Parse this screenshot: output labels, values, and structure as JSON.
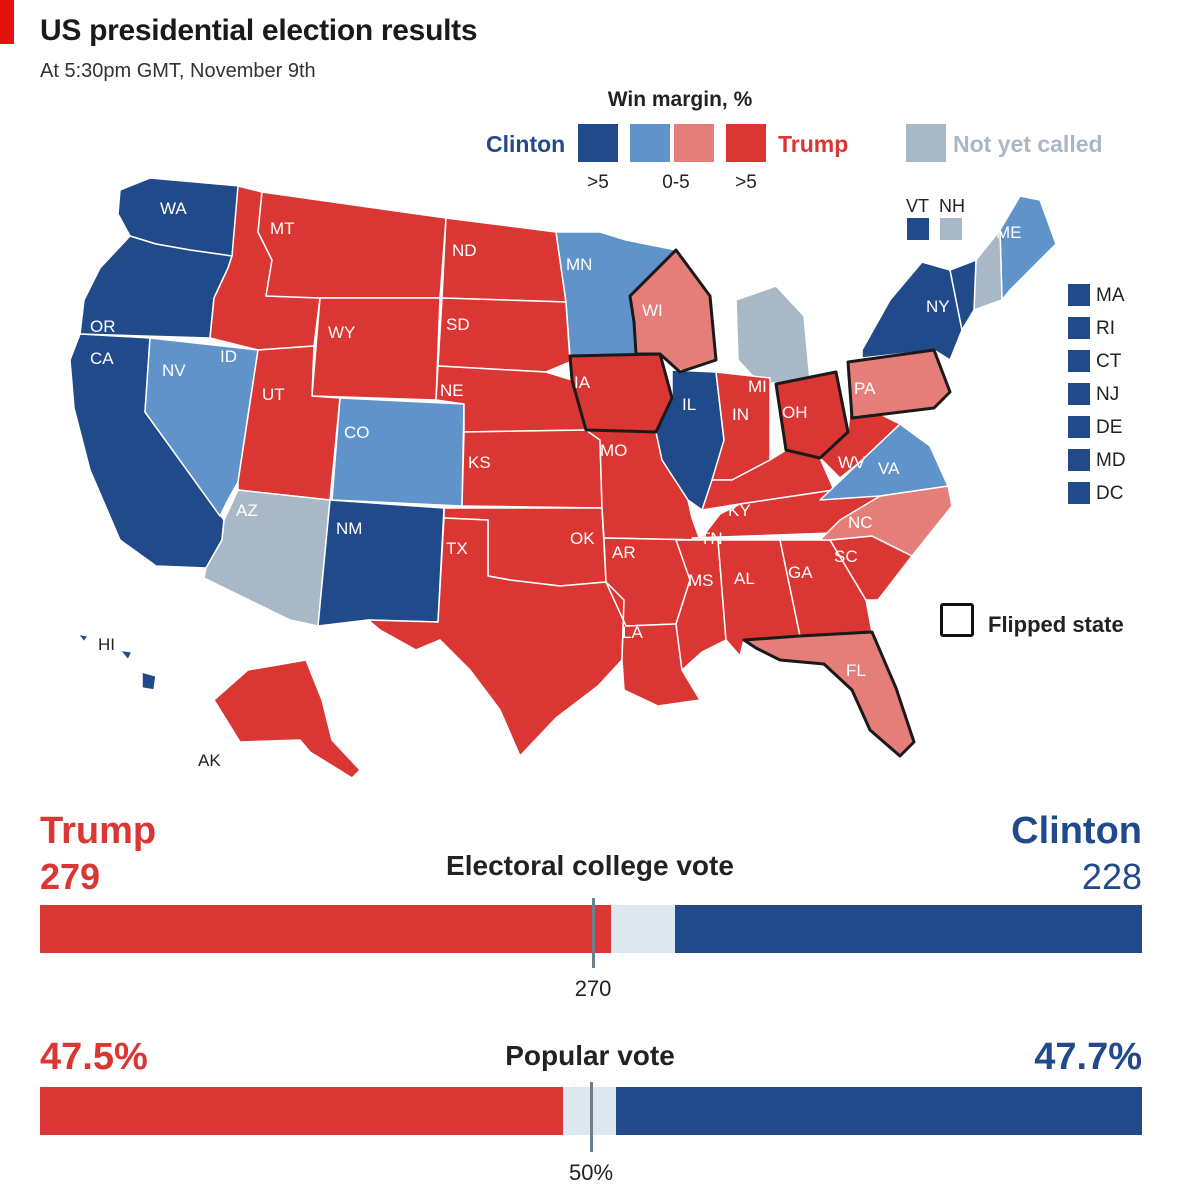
{
  "header": {
    "title": "US presidential election results",
    "subtitle": "At 5:30pm GMT, November 9th"
  },
  "legend": {
    "title": "Win margin, %",
    "clinton_label": "Clinton",
    "trump_label": "Trump",
    "not_called_label": "Not yet called",
    "ticks": [
      ">5",
      "0-5",
      ">5"
    ],
    "flipped_label": "Flipped state",
    "small_states": [
      {
        "abbr": "VT",
        "status": "clinton_strong"
      },
      {
        "abbr": "NH",
        "status": "not_called"
      }
    ],
    "northeast_states": [
      {
        "abbr": "MA",
        "status": "clinton_strong"
      },
      {
        "abbr": "RI",
        "status": "clinton_strong"
      },
      {
        "abbr": "CT",
        "status": "clinton_strong"
      },
      {
        "abbr": "NJ",
        "status": "clinton_strong"
      },
      {
        "abbr": "DE",
        "status": "clinton_strong"
      },
      {
        "abbr": "MD",
        "status": "clinton_strong"
      },
      {
        "abbr": "DC",
        "status": "clinton_strong"
      }
    ]
  },
  "colors": {
    "clinton_strong": "#214a8a",
    "clinton_lean": "#5f93c9",
    "trump_lean": "#e57e78",
    "trump_strong": "#da3633",
    "not_called": "#a9b8c6",
    "trump_text": "#da3633",
    "clinton_text": "#214a8a",
    "not_called_text": "#a9b8c6"
  },
  "states": {
    "WA": "clinton_strong",
    "OR": "clinton_strong",
    "CA": "clinton_strong",
    "NV": "clinton_lean",
    "ID": "trump_strong",
    "MT": "trump_strong",
    "WY": "trump_strong",
    "UT": "trump_strong",
    "AZ": "not_called",
    "CO": "clinton_lean",
    "NM": "clinton_strong",
    "ND": "trump_strong",
    "SD": "trump_strong",
    "NE": "trump_strong",
    "KS": "trump_strong",
    "OK": "trump_strong",
    "TX": "trump_strong",
    "MN": "clinton_lean",
    "IA": "trump_strong",
    "MO": "trump_strong",
    "AR": "trump_strong",
    "LA": "trump_strong",
    "WI": "trump_lean",
    "IL": "clinton_strong",
    "MI": "not_called",
    "IN": "trump_strong",
    "OH": "trump_strong",
    "KY": "trump_strong",
    "TN": "trump_strong",
    "MS": "trump_strong",
    "AL": "trump_strong",
    "GA": "trump_strong",
    "FL": "trump_lean",
    "SC": "trump_strong",
    "NC": "trump_lean",
    "VA": "clinton_lean",
    "WV": "trump_strong",
    "PA": "trump_lean",
    "NY": "clinton_strong",
    "ME": "clinton_lean",
    "NH": "not_called",
    "VT": "clinton_strong",
    "AK": "trump_strong",
    "HI": "clinton_strong"
  },
  "flipped_states": [
    "WI",
    "IA",
    "OH",
    "PA",
    "FL"
  ],
  "electoral": {
    "title": "Electoral college vote",
    "trump_name": "Trump",
    "clinton_name": "Clinton",
    "trump_votes": 279,
    "clinton_votes": 228,
    "total": 538,
    "threshold": 270,
    "threshold_label": "270"
  },
  "popular": {
    "title": "Popular vote",
    "trump_pct": 47.5,
    "clinton_pct": 47.7,
    "trump_label": "47.5%",
    "clinton_label": "47.7%",
    "threshold_label": "50%"
  }
}
